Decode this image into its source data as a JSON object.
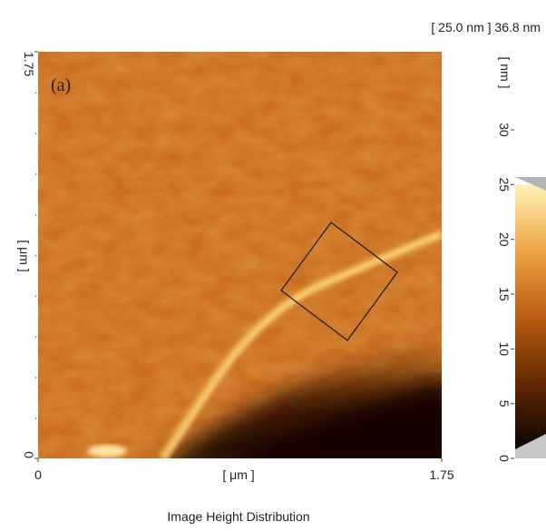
{
  "chart_data": {
    "type": "image",
    "header": "[ 25.0 nm ] 36.8 nm",
    "annotation": "(a)",
    "title": "Image Height Distribution",
    "xlabel": "[ μm ]",
    "ylabel": "[ μm ]",
    "xlim": [
      0,
      1.75
    ],
    "xticks": [
      0,
      1.75
    ],
    "ylim": [
      0,
      1.75
    ],
    "yticks": [
      0,
      1.75
    ],
    "colorbar": {
      "label": "[ nm ]",
      "lim": [
        0,
        36.8
      ],
      "range": [
        0,
        25
      ],
      "ticks": [
        0,
        5,
        10,
        15,
        20,
        25,
        30
      ]
    }
  }
}
